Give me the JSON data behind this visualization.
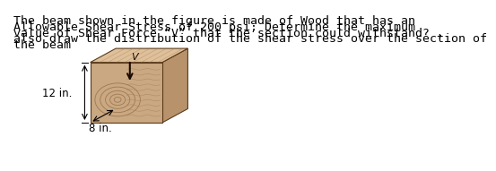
{
  "text_lines": [
    "The beam shown in the figure is made of Wood that has an",
    "Allowable Shear Stress of 200 psi; Determine the maximum",
    "value of Shear Force “V” that the section could withstand? ,",
    "also draw the distribution of the shear stress over the section of",
    "the beam"
  ],
  "dim_label_height": "12 in.",
  "dim_label_width": "8 in.",
  "wood_face_color": "#C9A882",
  "wood_top_color": "#DEC09A",
  "wood_side_color": "#B8926A",
  "wood_ring_color": "#A07850",
  "background_color": "#FFFFFF",
  "text_color": "#000000",
  "text_fontsize": 9.5,
  "arrow_color": "#1A0A00"
}
